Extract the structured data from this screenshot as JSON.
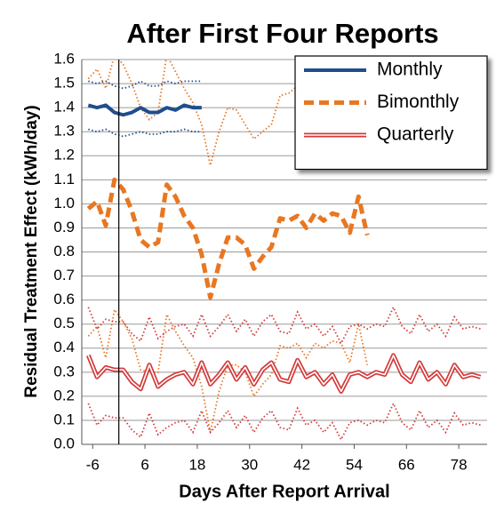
{
  "chart_data": {
    "type": "line",
    "title": "After First Four Reports",
    "x_label": "Days After Report Arrival",
    "y_label": "Residual Treatment Effect (kWh/day)",
    "xlim": [
      -8.5,
      84.5
    ],
    "xticks": [
      -6,
      6,
      18,
      30,
      42,
      54,
      66,
      78
    ],
    "ylim": [
      0,
      1.6
    ],
    "yticks": [
      {
        "value": 0,
        "label": "0.0"
      },
      0.1,
      0.2,
      0.3,
      0.4,
      0.5,
      0.6,
      0.7,
      0.8,
      0.9,
      {
        "value": 1,
        "label": "1.0"
      },
      1.1,
      1.2,
      1.3,
      1.4,
      1.5,
      1.6
    ],
    "grid": true,
    "vline": 0,
    "legend": "upper right",
    "series": [
      {
        "name": "Monthly",
        "color": "#1f4e8c",
        "style": "solid",
        "x": [
          -7,
          -5,
          -3,
          -1,
          1,
          3,
          5,
          7,
          9,
          11,
          13,
          15,
          17,
          19
        ],
        "values": [
          1.41,
          1.4,
          1.41,
          1.38,
          1.37,
          1.38,
          1.4,
          1.38,
          1.38,
          1.4,
          1.39,
          1.41,
          1.4,
          1.4
        ],
        "upper": [
          1.51,
          1.5,
          1.51,
          1.49,
          1.48,
          1.49,
          1.51,
          1.49,
          1.49,
          1.51,
          1.5,
          1.51,
          1.51,
          1.51
        ],
        "lower": [
          1.31,
          1.3,
          1.31,
          1.29,
          1.28,
          1.29,
          1.3,
          1.29,
          1.29,
          1.3,
          1.3,
          1.31,
          1.3,
          1.3
        ]
      },
      {
        "name": "Bimonthly",
        "color": "#e87722",
        "style": "dashed",
        "x": [
          -7,
          -5,
          -3,
          -1,
          1,
          3,
          5,
          7,
          9,
          11,
          13,
          15,
          17,
          19,
          21,
          23,
          25,
          27,
          29,
          31,
          33,
          35,
          37,
          39,
          41,
          43,
          45,
          47,
          49,
          51,
          53,
          55,
          57
        ],
        "values": [
          0.98,
          1.01,
          0.91,
          1.1,
          1.06,
          0.97,
          0.85,
          0.82,
          0.84,
          1.08,
          1.03,
          0.95,
          0.9,
          0.79,
          0.61,
          0.75,
          0.86,
          0.86,
          0.83,
          0.73,
          0.78,
          0.82,
          0.94,
          0.93,
          0.95,
          0.9,
          0.96,
          0.93,
          0.96,
          0.95,
          0.88,
          1.03,
          0.87
        ],
        "upper": [
          1.52,
          1.56,
          1.48,
          1.62,
          1.58,
          1.5,
          1.4,
          1.35,
          1.38,
          1.62,
          1.55,
          1.48,
          1.42,
          1.33,
          1.16,
          1.3,
          1.4,
          1.39,
          1.33,
          1.27,
          1.3,
          1.33,
          1.45,
          1.46,
          1.49,
          1.5,
          1.45,
          1.52,
          1.48,
          1.51,
          1.5,
          1.57,
          1.4
        ],
        "lower": [
          0.45,
          0.49,
          0.36,
          0.56,
          0.51,
          0.44,
          0.31,
          0.3,
          0.3,
          0.54,
          0.47,
          0.41,
          0.36,
          0.24,
          0.05,
          0.22,
          0.33,
          0.33,
          0.3,
          0.2,
          0.25,
          0.29,
          0.41,
          0.4,
          0.42,
          0.36,
          0.42,
          0.4,
          0.43,
          0.42,
          0.34,
          0.5,
          0.33
        ]
      },
      {
        "name": "Quarterly",
        "color": "#d43a3a",
        "style": "double",
        "x": [
          -7,
          -5,
          -3,
          -1,
          1,
          3,
          5,
          7,
          9,
          11,
          13,
          15,
          17,
          19,
          21,
          23,
          25,
          27,
          29,
          31,
          33,
          35,
          37,
          39,
          41,
          43,
          45,
          47,
          49,
          51,
          53,
          55,
          57,
          59,
          61,
          63,
          65,
          67,
          69,
          71,
          73,
          75,
          77,
          79,
          81,
          83
        ],
        "values": [
          0.37,
          0.28,
          0.32,
          0.31,
          0.31,
          0.26,
          0.23,
          0.33,
          0.24,
          0.27,
          0.29,
          0.3,
          0.25,
          0.34,
          0.25,
          0.29,
          0.34,
          0.27,
          0.32,
          0.25,
          0.31,
          0.34,
          0.27,
          0.26,
          0.35,
          0.28,
          0.3,
          0.25,
          0.29,
          0.22,
          0.29,
          0.3,
          0.28,
          0.3,
          0.29,
          0.37,
          0.29,
          0.26,
          0.34,
          0.27,
          0.3,
          0.25,
          0.33,
          0.28,
          0.29,
          0.28
        ],
        "upper": [
          0.57,
          0.48,
          0.52,
          0.51,
          0.51,
          0.46,
          0.43,
          0.53,
          0.44,
          0.47,
          0.49,
          0.5,
          0.45,
          0.54,
          0.45,
          0.49,
          0.54,
          0.47,
          0.52,
          0.45,
          0.51,
          0.54,
          0.47,
          0.46,
          0.55,
          0.48,
          0.5,
          0.45,
          0.49,
          0.42,
          0.49,
          0.5,
          0.48,
          0.5,
          0.49,
          0.57,
          0.49,
          0.46,
          0.54,
          0.47,
          0.5,
          0.45,
          0.53,
          0.48,
          0.49,
          0.48
        ],
        "lower": [
          0.17,
          0.08,
          0.12,
          0.11,
          0.11,
          0.06,
          0.03,
          0.13,
          0.04,
          0.07,
          0.09,
          0.1,
          0.05,
          0.14,
          0.05,
          0.09,
          0.14,
          0.07,
          0.12,
          0.05,
          0.11,
          0.14,
          0.07,
          0.06,
          0.15,
          0.08,
          0.1,
          0.05,
          0.09,
          0.02,
          0.09,
          0.1,
          0.08,
          0.1,
          0.09,
          0.17,
          0.09,
          0.06,
          0.14,
          0.07,
          0.1,
          0.05,
          0.13,
          0.08,
          0.09,
          0.08
        ]
      }
    ]
  }
}
